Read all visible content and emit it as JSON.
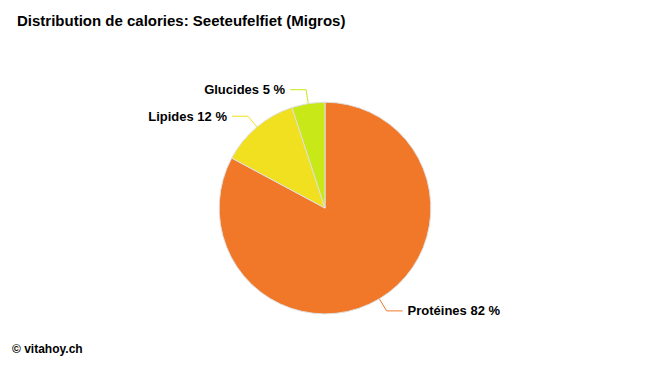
{
  "chart_data": {
    "type": "pie",
    "title": "Distribution de calories: Seeteufelfiet (Migros)",
    "categories": [
      "Protéines 82 %",
      "Lipides 12 %",
      "Glucides 5 %"
    ],
    "values": [
      82,
      12,
      5
    ],
    "colors": [
      "#F07828",
      "#F0E020",
      "#C8E818"
    ],
    "annotations": [
      "© vitahoy.ch"
    ]
  }
}
